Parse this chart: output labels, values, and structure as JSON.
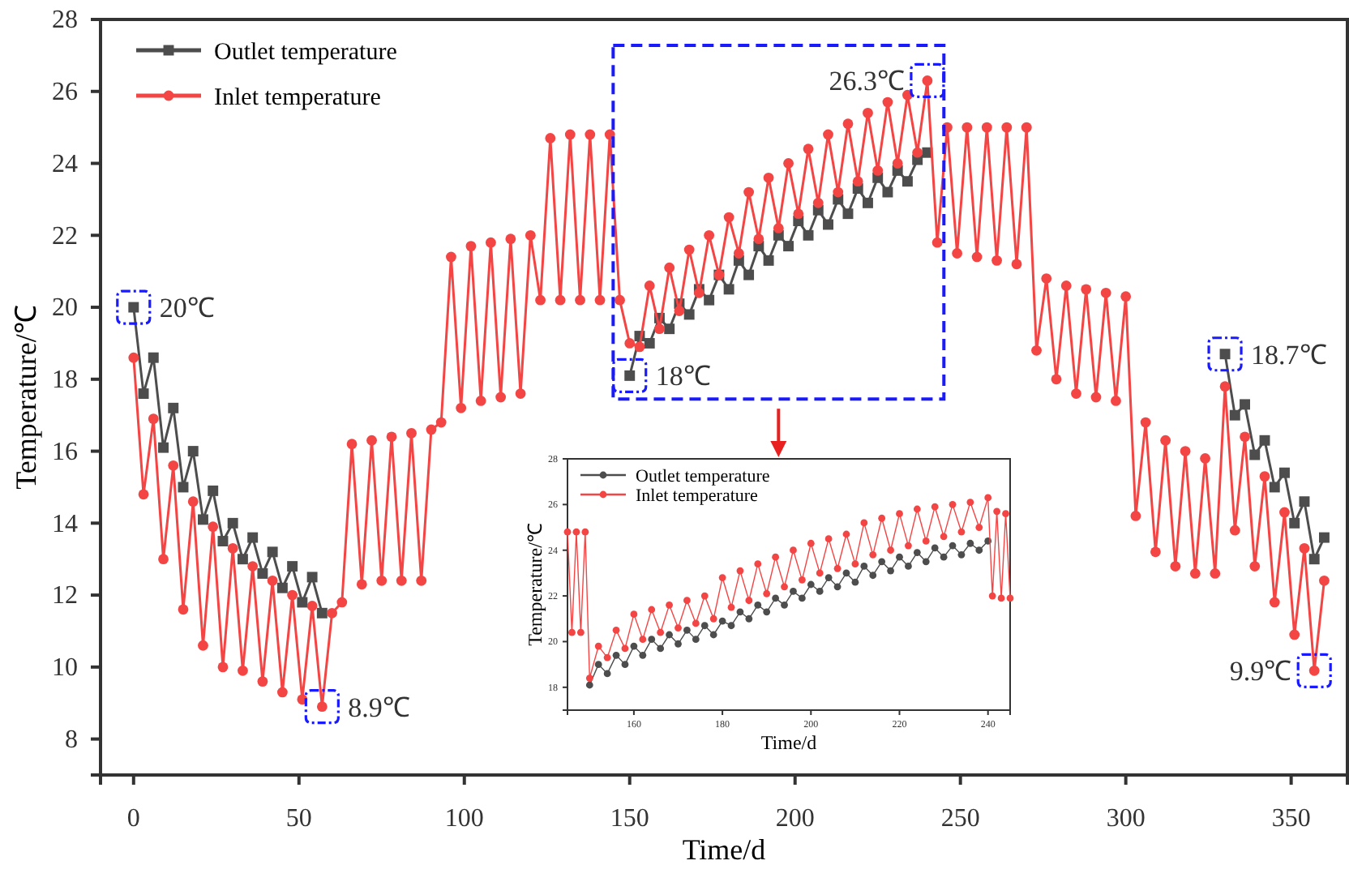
{
  "chart_data": [
    {
      "type": "line",
      "xlabel": "Time/d",
      "ylabel": "Temperature/℃",
      "xlim": [
        -10,
        367
      ],
      "ylim": [
        7,
        28
      ],
      "xticks": [
        0,
        50,
        100,
        150,
        200,
        250,
        300,
        350
      ],
      "yticks": [
        8,
        10,
        12,
        14,
        16,
        18,
        20,
        22,
        24,
        26,
        28
      ],
      "legend": "top left",
      "grid": false,
      "series": [
        {
          "name": "Outlet temperature",
          "color": "#4d4d4d",
          "marker": "square",
          "x": [
            0,
            3,
            6,
            9,
            12,
            15,
            18,
            21,
            24,
            27,
            30,
            33,
            36,
            39,
            42,
            45,
            48,
            51,
            54,
            57,
            60,
            150,
            153,
            156,
            159,
            162,
            165,
            168,
            171,
            174,
            177,
            180,
            183,
            186,
            189,
            192,
            195,
            198,
            201,
            204,
            207,
            210,
            213,
            216,
            219,
            222,
            225,
            228,
            231,
            234,
            237,
            240,
            243,
            330,
            333,
            336,
            339,
            342,
            345,
            348,
            351,
            354,
            357,
            360
          ],
          "values": [
            20.0,
            17.6,
            18.6,
            16.1,
            17.2,
            15.0,
            16.0,
            14.1,
            14.9,
            13.5,
            14.0,
            13.0,
            13.6,
            12.6,
            13.2,
            12.2,
            12.8,
            11.8,
            12.5,
            11.5,
            null,
            18.1,
            19.2,
            19.0,
            19.7,
            19.4,
            20.1,
            19.8,
            20.5,
            20.2,
            20.9,
            20.5,
            21.3,
            20.9,
            21.7,
            21.3,
            22.0,
            21.7,
            22.4,
            22.0,
            22.7,
            22.3,
            23.0,
            22.6,
            23.3,
            22.9,
            23.6,
            23.2,
            23.8,
            23.5,
            24.1,
            24.3,
            null,
            18.7,
            17.0,
            17.3,
            15.9,
            16.3,
            15.0,
            15.4,
            14.0,
            14.6,
            13.0,
            13.6
          ]
        },
        {
          "name": "Inlet temperature",
          "color": "#f44545",
          "marker": "circle",
          "x": [
            0,
            3,
            6,
            9,
            12,
            15,
            18,
            21,
            24,
            27,
            30,
            33,
            36,
            39,
            42,
            45,
            48,
            51,
            54,
            57,
            60,
            63,
            66,
            69,
            72,
            75,
            78,
            81,
            84,
            87,
            90,
            93,
            96,
            99,
            102,
            105,
            108,
            111,
            114,
            117,
            120,
            123,
            126,
            129,
            132,
            135,
            138,
            141,
            144,
            147,
            150,
            153,
            156,
            159,
            162,
            165,
            168,
            171,
            174,
            177,
            180,
            183,
            186,
            189,
            192,
            195,
            198,
            201,
            204,
            207,
            210,
            213,
            216,
            219,
            222,
            225,
            228,
            231,
            234,
            237,
            240,
            243,
            246,
            249,
            252,
            255,
            258,
            261,
            264,
            267,
            270,
            273,
            276,
            279,
            282,
            285,
            288,
            291,
            294,
            297,
            300,
            303,
            306,
            309,
            312,
            315,
            318,
            321,
            324,
            327,
            330,
            333,
            336,
            339,
            342,
            345,
            348,
            351,
            354,
            357,
            360
          ],
          "values": [
            18.6,
            14.8,
            16.9,
            13.0,
            15.6,
            11.6,
            14.6,
            10.6,
            13.9,
            10.0,
            13.3,
            9.9,
            12.8,
            9.6,
            12.4,
            9.3,
            12.0,
            9.1,
            11.7,
            8.9,
            11.5,
            11.8,
            16.2,
            12.3,
            16.3,
            12.4,
            16.4,
            12.4,
            16.5,
            12.4,
            16.6,
            16.8,
            21.4,
            17.2,
            21.7,
            17.4,
            21.8,
            17.5,
            21.9,
            17.6,
            22.0,
            20.2,
            24.7,
            20.2,
            24.8,
            20.2,
            24.8,
            20.2,
            24.8,
            20.2,
            19.0,
            18.9,
            20.6,
            19.4,
            21.1,
            19.9,
            21.6,
            20.4,
            22.0,
            20.9,
            22.5,
            21.5,
            23.2,
            21.9,
            23.6,
            22.2,
            24.0,
            22.6,
            24.4,
            22.9,
            24.8,
            23.2,
            25.1,
            23.5,
            25.4,
            23.8,
            25.7,
            24.0,
            25.9,
            24.3,
            26.3,
            21.8,
            25.0,
            21.5,
            25.0,
            21.4,
            25.0,
            21.3,
            25.0,
            21.2,
            25.0,
            18.8,
            20.8,
            18.0,
            20.6,
            17.6,
            20.5,
            17.5,
            20.4,
            17.4,
            20.3,
            14.2,
            16.8,
            13.2,
            16.3,
            12.8,
            16.0,
            12.6,
            15.8,
            12.6,
            17.8,
            13.8,
            16.4,
            12.8,
            15.3,
            11.8,
            14.3,
            10.9,
            13.3,
            9.9,
            12.4
          ]
        }
      ],
      "annotations": [
        {
          "text": "20℃",
          "x": 0,
          "y": 20.0
        },
        {
          "text": "8.9℃",
          "x": 57,
          "y": 8.9
        },
        {
          "text": "18℃",
          "x": 150,
          "y": 18.1
        },
        {
          "text": "26.3℃",
          "x": 240,
          "y": 26.3
        },
        {
          "text": "18.7℃",
          "x": 330,
          "y": 18.7
        },
        {
          "text": "9.9℃",
          "x": 357,
          "y": 9.9
        }
      ]
    },
    {
      "type": "line",
      "xlabel": "Time/d",
      "ylabel": "Temperature/℃",
      "xlim": [
        145,
        245
      ],
      "ylim": [
        17,
        28
      ],
      "xticks": [
        160,
        180,
        200,
        220,
        240
      ],
      "yticks": [
        18,
        20,
        22,
        24,
        26,
        28
      ],
      "legend": "top left",
      "grid": false,
      "series": [
        {
          "name": "Outlet temperature",
          "color": "#4d4d4d",
          "marker": "circle",
          "x": [
            150,
            152,
            154,
            156,
            158,
            160,
            162,
            164,
            166,
            168,
            170,
            172,
            174,
            176,
            178,
            180,
            182,
            184,
            186,
            188,
            190,
            192,
            194,
            196,
            198,
            200,
            202,
            204,
            206,
            208,
            210,
            212,
            214,
            216,
            218,
            220,
            222,
            224,
            226,
            228,
            230,
            232,
            234,
            236,
            238,
            240
          ],
          "values": [
            18.1,
            19.0,
            18.6,
            19.4,
            19.0,
            19.8,
            19.4,
            20.1,
            19.7,
            20.3,
            19.9,
            20.5,
            20.1,
            20.7,
            20.3,
            20.9,
            20.7,
            21.3,
            21.0,
            21.6,
            21.3,
            21.9,
            21.6,
            22.2,
            21.9,
            22.5,
            22.2,
            22.8,
            22.4,
            23.0,
            22.6,
            23.3,
            22.9,
            23.5,
            23.1,
            23.7,
            23.3,
            23.9,
            23.5,
            24.1,
            23.7,
            24.2,
            23.8,
            24.3,
            24.0,
            24.4
          ]
        },
        {
          "name": "Inlet temperature",
          "color": "#f44545",
          "marker": "circle",
          "x": [
            145,
            146,
            147,
            148,
            149,
            150,
            152,
            154,
            156,
            158,
            160,
            162,
            164,
            166,
            168,
            170,
            172,
            174,
            176,
            178,
            180,
            182,
            184,
            186,
            188,
            190,
            192,
            194,
            196,
            198,
            200,
            202,
            204,
            206,
            208,
            210,
            212,
            214,
            216,
            218,
            220,
            222,
            224,
            226,
            228,
            230,
            232,
            234,
            236,
            238,
            240,
            241,
            242,
            243,
            244,
            245
          ],
          "values": [
            24.8,
            20.4,
            24.8,
            20.4,
            24.8,
            18.4,
            19.8,
            19.3,
            20.5,
            19.7,
            21.2,
            20.1,
            21.4,
            20.4,
            21.6,
            20.6,
            21.8,
            20.8,
            22.0,
            21.0,
            22.8,
            21.5,
            23.1,
            21.8,
            23.4,
            22.1,
            23.7,
            22.4,
            24.0,
            22.7,
            24.3,
            23.0,
            24.5,
            23.2,
            24.7,
            23.4,
            25.2,
            23.8,
            25.4,
            24.0,
            25.6,
            24.2,
            25.8,
            24.4,
            25.9,
            24.6,
            26.0,
            24.8,
            26.1,
            25.0,
            26.3,
            22.0,
            25.7,
            21.9,
            25.6,
            21.9
          ]
        }
      ]
    }
  ]
}
